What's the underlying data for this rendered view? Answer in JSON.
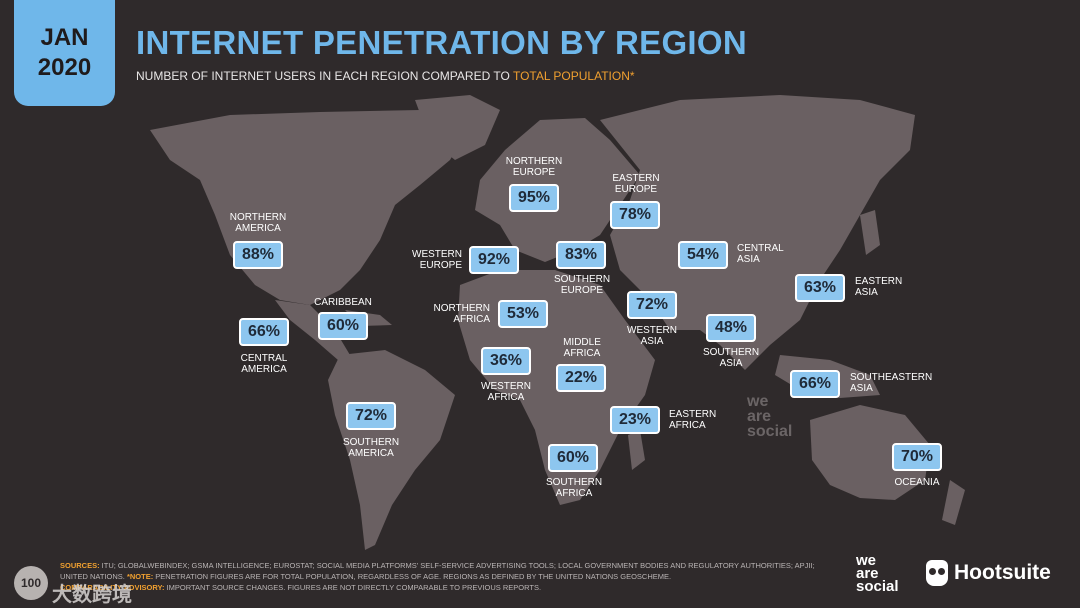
{
  "header": {
    "month": "JAN",
    "year": "2020",
    "title": "INTERNET PENETRATION BY REGION",
    "subtitle_main": "NUMBER OF INTERNET USERS IN EACH REGION COMPARED TO ",
    "subtitle_highlight": "TOTAL POPULATION*"
  },
  "regions": [
    {
      "name": "NORTHERN\nAMERICA",
      "value": "88%"
    },
    {
      "name": "CARIBBEAN",
      "value": "60%"
    },
    {
      "name": "CENTRAL\nAMERICA",
      "value": "66%"
    },
    {
      "name": "SOUTHERN\nAMERICA",
      "value": "72%"
    },
    {
      "name": "NORTHERN\nEUROPE",
      "value": "95%"
    },
    {
      "name": "WESTERN\nEUROPE",
      "value": "92%"
    },
    {
      "name": "SOUTHERN\nEUROPE",
      "value": "83%"
    },
    {
      "name": "EASTERN\nEUROPE",
      "value": "78%"
    },
    {
      "name": "NORTHERN\nAFRICA",
      "value": "53%"
    },
    {
      "name": "WESTERN\nAFRICA",
      "value": "36%"
    },
    {
      "name": "MIDDLE\nAFRICA",
      "value": "22%"
    },
    {
      "name": "EASTERN\nAFRICA",
      "value": "23%"
    },
    {
      "name": "SOUTHERN\nAFRICA",
      "value": "60%"
    },
    {
      "name": "WESTERN\nASIA",
      "value": "72%"
    },
    {
      "name": "CENTRAL\nASIA",
      "value": "54%"
    },
    {
      "name": "SOUTHERN\nASIA",
      "value": "48%"
    },
    {
      "name": "EASTERN\nASIA",
      "value": "63%"
    },
    {
      "name": "SOUTHEASTERN\nASIA",
      "value": "66%"
    },
    {
      "name": "OCEANIA",
      "value": "70%"
    }
  ],
  "map_watermark": "we\nare\nsocial",
  "footer": {
    "sources_label": "SOURCES:",
    "sources_text": " ITU; GLOBALWEBINDEX; GSMA INTELLIGENCE; EUROSTAT; SOCIAL MEDIA PLATFORMS' SELF-SERVICE ADVERTISING TOOLS; LOCAL GOVERNMENT BODIES AND REGULATORY AUTHORITIES; APJII; UNITED NATIONS.",
    "note_label": " *NOTE:",
    "note_text": " PENETRATION FIGURES ARE FOR TOTAL POPULATION, REGARDLESS OF AGE. REGIONS AS DEFINED BY THE UNITED NATIONS GEOSCHEME.",
    "advisory_label": "COMPARABILITY ADVISORY:",
    "advisory_text": " IMPORTANT SOURCE CHANGES. FIGURES ARE NOT DIRECTLY COMPARABLE TO PREVIOUS REPORTS."
  },
  "logos": {
    "we_are_social": "we\nare\nsocial",
    "hootsuite": "Hootsuite"
  },
  "watermark": {
    "circle_text": "100",
    "text": "大数跨境"
  },
  "colors": {
    "background": "#2f2a2b",
    "land": "#6a6062",
    "accent": "#6fb7ea",
    "box": "#8dc6ef",
    "highlight": "#f0a030"
  }
}
